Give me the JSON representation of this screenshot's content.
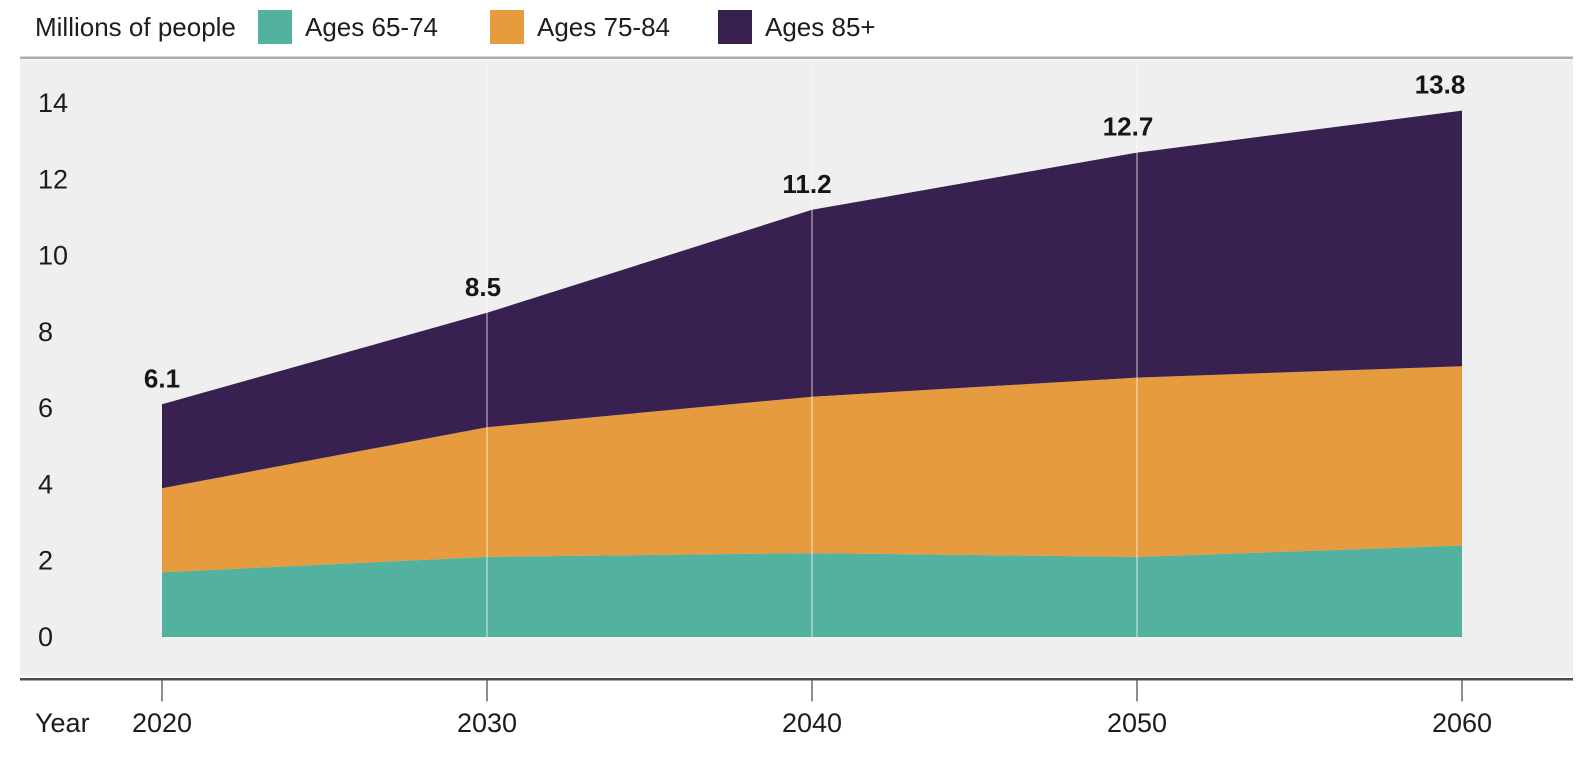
{
  "chart_data": {
    "type": "area",
    "stacked": true,
    "units_label": "Millions of people",
    "xlabel": "Year",
    "x": [
      2020,
      2030,
      2040,
      2050,
      2060
    ],
    "series": [
      {
        "name": "Ages 65-74",
        "color": "#53b1a0",
        "values": [
          1.7,
          2.1,
          2.2,
          2.1,
          2.4
        ]
      },
      {
        "name": "Ages 75-84",
        "color": "#e69b3e",
        "values": [
          2.2,
          3.4,
          4.1,
          4.7,
          4.7
        ]
      },
      {
        "name": "Ages 85+",
        "color": "#382150",
        "values": [
          2.2,
          3.0,
          4.9,
          5.9,
          6.7
        ]
      }
    ],
    "totals": [
      6.1,
      8.5,
      11.2,
      12.7,
      13.8
    ],
    "total_labels": [
      "6.1",
      "8.5",
      "11.2",
      "12.7",
      "13.8"
    ],
    "y_ticks": [
      0,
      2,
      4,
      6,
      8,
      10,
      12,
      14
    ],
    "ylim": [
      0,
      14
    ],
    "grid_vertical_at": [
      2030,
      2040,
      2050
    ],
    "grid": "vertical-decade-lines",
    "legend_position": "top",
    "colors": {
      "plot_background": "#f0efef",
      "top_border": "#adadad",
      "axis_line": "#4d4d4d",
      "tick": "#8e8e8e",
      "gridline": "#ffffff",
      "text": "#1d1d1b"
    }
  }
}
